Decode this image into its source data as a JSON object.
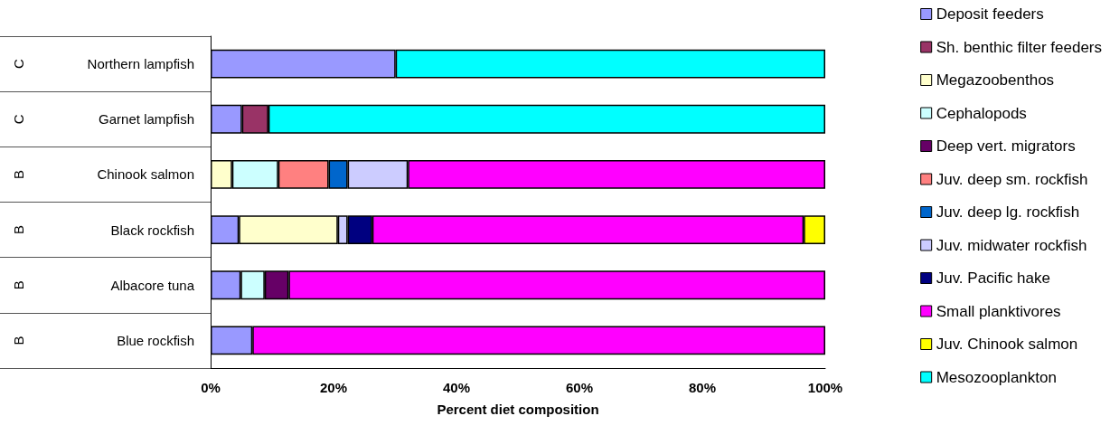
{
  "chart_data": {
    "type": "bar",
    "orientation": "horizontal",
    "stacked": true,
    "xlabel": "Percent diet composition",
    "categories": [
      "Northern lampfish",
      "Garnet lampfish",
      "Chinook salmon",
      "Black rockfish",
      "Albacore tuna",
      "Blue rockfish"
    ],
    "xlim": [
      0,
      100
    ],
    "xticks": [
      {
        "value": 0,
        "label": "0%"
      },
      {
        "value": 20,
        "label": "20%"
      },
      {
        "value": 40,
        "label": "40%"
      },
      {
        "value": 60,
        "label": "60%"
      },
      {
        "value": 80,
        "label": "80%"
      },
      {
        "value": 100,
        "label": "100%"
      }
    ],
    "grid": false,
    "legend": "right",
    "annotations": [
      "C",
      "C",
      "B",
      "B",
      "B",
      "B"
    ],
    "series": [
      {
        "name": "Deposit feeders",
        "color": "#9999ff",
        "values": [
          30.1,
          5.1,
          null,
          4.6,
          4.9,
          6.8
        ]
      },
      {
        "name": "Sh. benthic filter feeders",
        "color": "#993366",
        "values": [
          null,
          4.3,
          null,
          null,
          null,
          null
        ]
      },
      {
        "name": "Megazoobenthos",
        "color": "#ffffcc",
        "values": [
          null,
          null,
          3.5,
          16.1,
          null,
          null
        ]
      },
      {
        "name": "Cephalopods",
        "color": "#ccffff",
        "values": [
          null,
          null,
          7.5,
          null,
          3.9,
          null
        ]
      },
      {
        "name": "Deep vert. migrators",
        "color": "#660066",
        "values": [
          null,
          null,
          null,
          null,
          3.9,
          null
        ]
      },
      {
        "name": "Juv. deep sm. rockfish",
        "color": "#ff8080",
        "values": [
          null,
          null,
          8.2,
          null,
          null,
          null
        ]
      },
      {
        "name": "Juv. deep lg. rockfish",
        "color": "#0066cc",
        "values": [
          null,
          null,
          3.1,
          null,
          null,
          null
        ]
      },
      {
        "name": "Juv. midwater rockfish",
        "color": "#ccccff",
        "values": [
          null,
          null,
          9.8,
          1.6,
          null,
          null
        ]
      },
      {
        "name": "Juv. Pacific hake",
        "color": "#000080",
        "values": [
          null,
          null,
          null,
          4.0,
          null,
          null
        ]
      },
      {
        "name": "Small planktivores",
        "color": "#ff00ff",
        "values": [
          null,
          null,
          67.9,
          70.2,
          87.3,
          93.2
        ]
      },
      {
        "name": "Juv. Chinook salmon",
        "color": "#ffff00",
        "values": [
          null,
          null,
          null,
          3.5,
          null,
          null
        ]
      },
      {
        "name": "Mesozooplankton",
        "color": "#00ffff",
        "values": [
          69.9,
          90.6,
          null,
          null,
          null,
          null
        ]
      }
    ]
  }
}
